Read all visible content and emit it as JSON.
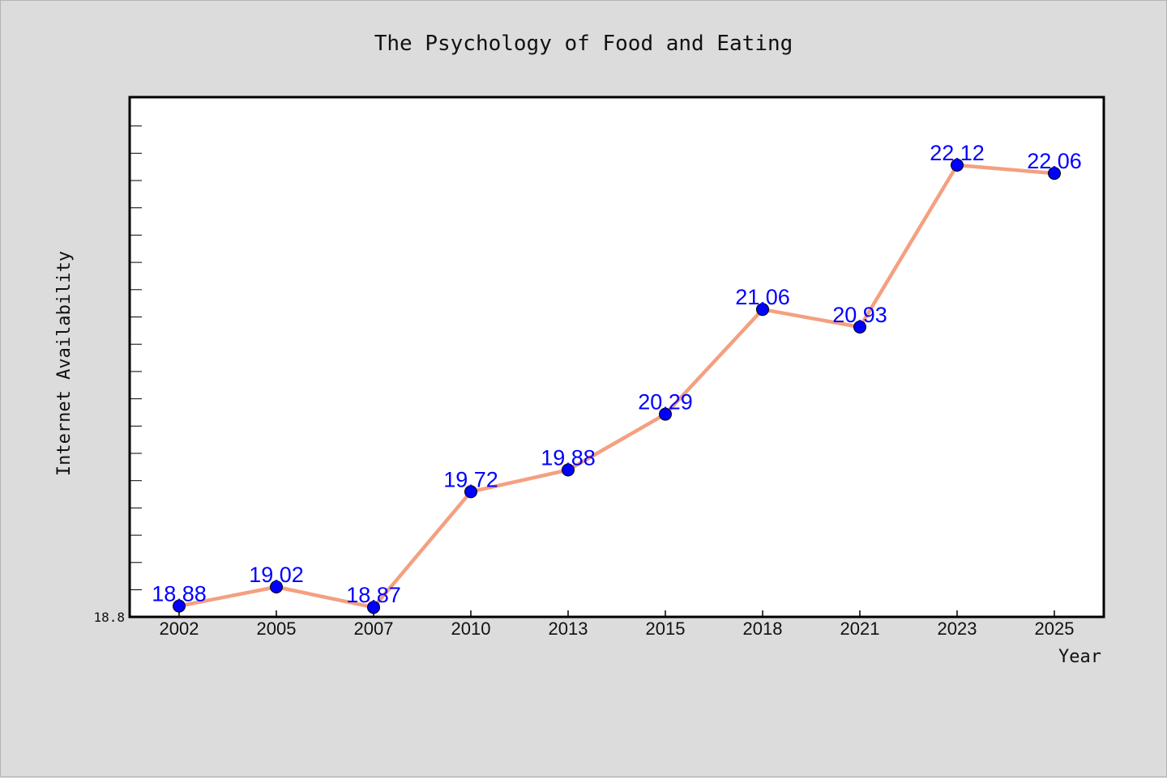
{
  "chart_data": {
    "type": "line",
    "title": "The Psychology of Food and Eating",
    "xlabel": "Year",
    "ylabel": "Internet Availability",
    "categories": [
      "2002",
      "2005",
      "2007",
      "2010",
      "2013",
      "2015",
      "2018",
      "2021",
      "2023",
      "2025"
    ],
    "series": [
      {
        "values": [
          18.88,
          19.02,
          18.87,
          19.72,
          19.88,
          20.29,
          21.06,
          20.93,
          22.12,
          22.06
        ],
        "labels": [
          "18.88",
          "19.02",
          "18.87",
          "19.72",
          "19.88",
          "20.29",
          "21.06",
          "20.93",
          "22.12",
          "22.06"
        ]
      }
    ],
    "ylim": [
      18.8,
      22.62
    ],
    "yticks": [
      "18.8"
    ],
    "line_color": "#f4a080",
    "marker_color": "#0000ff",
    "label_color": "#0000ff",
    "grid": false
  }
}
